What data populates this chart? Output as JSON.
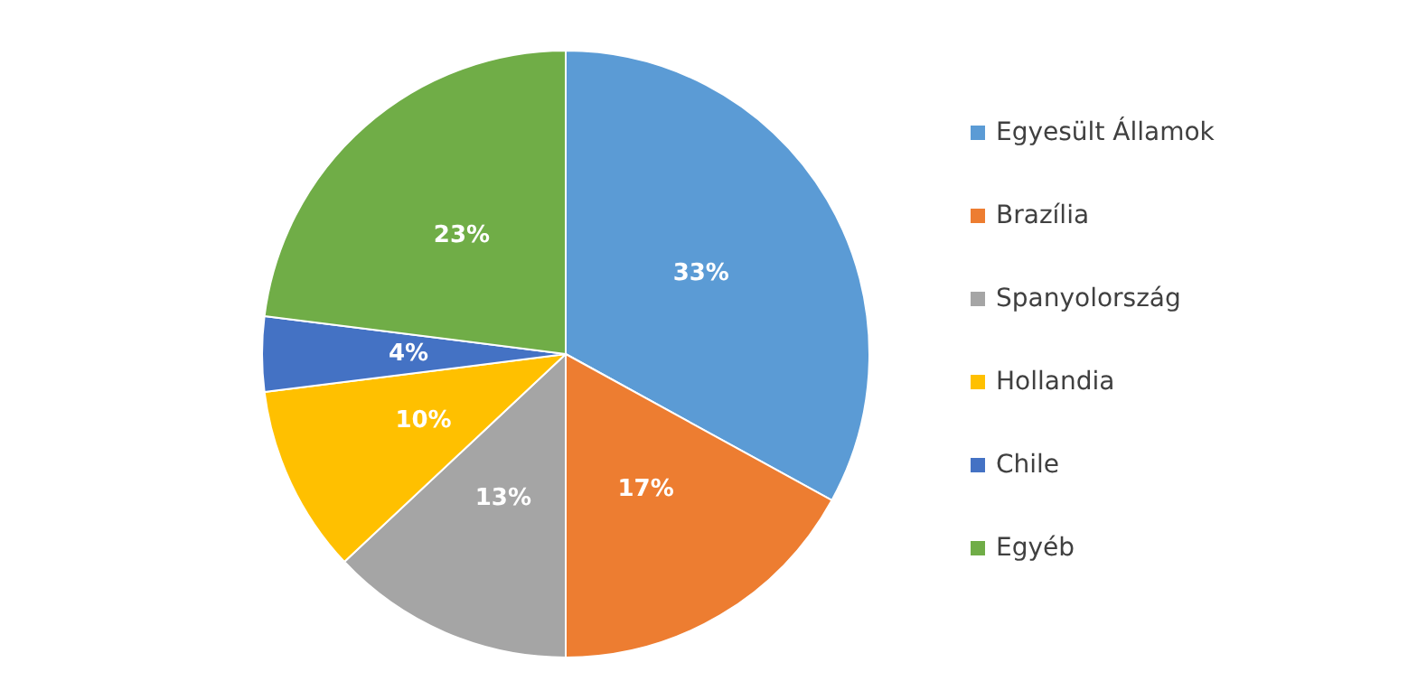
{
  "chart_data": {
    "type": "pie",
    "categories": [
      "Egyesült Államok",
      "Brazília",
      "Spanyolország",
      "Hollandia",
      "Chile",
      "Egyéb"
    ],
    "values": [
      33,
      17,
      13,
      10,
      4,
      23
    ],
    "colors": [
      "#5b9bd5",
      "#ed7d31",
      "#a5a5a5",
      "#ffc000",
      "#4472c4",
      "#70ad47"
    ],
    "value_labels": [
      "33%",
      "17%",
      "13%",
      "10%",
      "4%",
      "23%"
    ],
    "legend": "right"
  }
}
